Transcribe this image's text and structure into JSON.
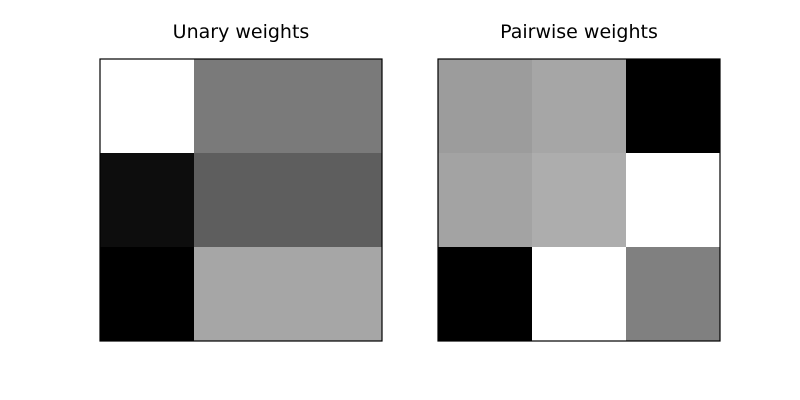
{
  "chart_data": [
    {
      "type": "heatmap",
      "title": "Unary weights",
      "colormap": "gray",
      "axes_visible": false,
      "grid": false,
      "rows": 3,
      "cols": 3,
      "values": [
        [
          1.0,
          0.48,
          0.48
        ],
        [
          0.05,
          0.37,
          0.37
        ],
        [
          0.0,
          0.65,
          0.65
        ]
      ]
    },
    {
      "type": "heatmap",
      "title": "Pairwise weights",
      "colormap": "gray",
      "axes_visible": false,
      "grid": false,
      "rows": 3,
      "cols": 3,
      "values": [
        [
          0.61,
          0.65,
          0.0
        ],
        [
          0.64,
          0.68,
          1.0
        ],
        [
          0.0,
          1.0,
          0.5
        ]
      ]
    }
  ]
}
